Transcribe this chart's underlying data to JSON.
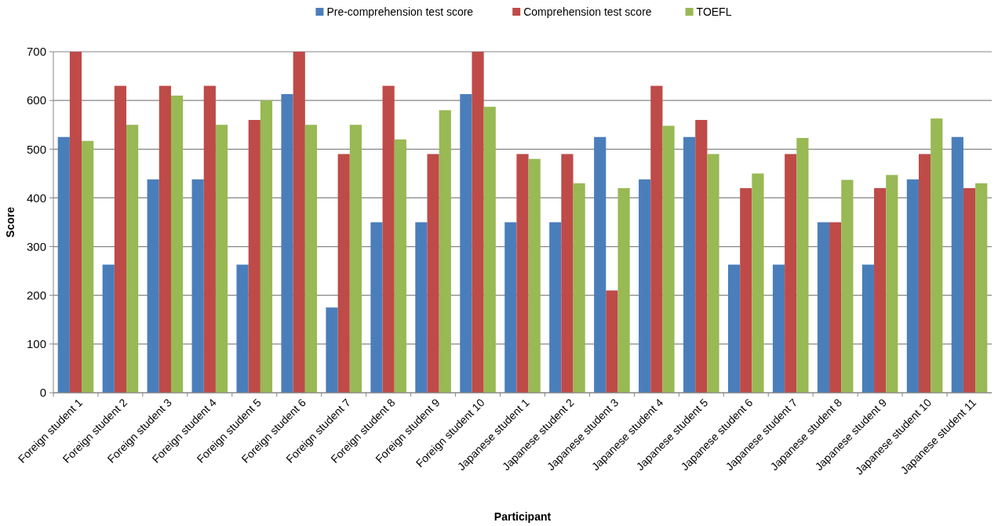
{
  "chart_data": {
    "type": "bar",
    "xlabel": "Participant",
    "ylabel": "Score",
    "categories": [
      "Foreign student 1",
      "Foreign student 2",
      "Foreign student 3",
      "Foreign student 4",
      "Foreign student 5",
      "Foreign student 6",
      "Foreign student 7",
      "Foreign student 8",
      "Foreign student 9",
      "Foreign student 10",
      "Japanese student 1",
      "Japanese student 2",
      "Japanese student 3",
      "Japanese student 4",
      "Japanese student 5",
      "Japanese student 6",
      "Japanese student 7",
      "Japanese student 8",
      "Japanese student 9",
      "Japanese student 10",
      "Japanese student 11"
    ],
    "series": [
      {
        "name": "Pre-comprehension test score",
        "color": "#4a7ebb",
        "values": [
          525,
          263,
          438,
          438,
          263,
          613,
          175,
          350,
          350,
          613,
          350,
          350,
          525,
          438,
          525,
          263,
          263,
          350,
          263,
          438,
          525
        ]
      },
      {
        "name": "Comprehension test score",
        "color": "#be4b48",
        "values": [
          700,
          630,
          630,
          630,
          560,
          700,
          490,
          630,
          490,
          700,
          490,
          490,
          210,
          630,
          560,
          420,
          490,
          350,
          420,
          490,
          420
        ]
      },
      {
        "name": "TOEFL",
        "color": "#98b954",
        "values": [
          517,
          550,
          610,
          550,
          600,
          550,
          550,
          520,
          580,
          587,
          480,
          430,
          420,
          548,
          490,
          450,
          523,
          437,
          447,
          563,
          430
        ]
      }
    ],
    "ylim": [
      0,
      700
    ],
    "yticks": [
      0,
      100,
      200,
      300,
      400,
      500,
      600,
      700
    ],
    "grid": "y",
    "legend": "top"
  }
}
